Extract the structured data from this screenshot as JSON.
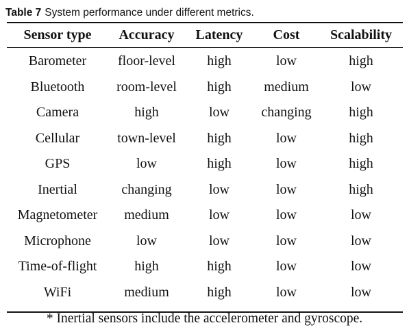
{
  "caption": {
    "label": "Table 7",
    "text": "System performance under different metrics."
  },
  "table": {
    "headers": [
      "Sensor type",
      "Accuracy",
      "Latency",
      "Cost",
      "Scalability"
    ],
    "rows": [
      [
        "Barometer",
        "floor-level",
        "high",
        "low",
        "high"
      ],
      [
        "Bluetooth",
        "room-level",
        "high",
        "medium",
        "low"
      ],
      [
        "Camera",
        "high",
        "low",
        "changing",
        "high"
      ],
      [
        "Cellular",
        "town-level",
        "high",
        "low",
        "high"
      ],
      [
        "GPS",
        "low",
        "high",
        "low",
        "high"
      ],
      [
        "Inertial",
        "changing",
        "low",
        "low",
        "high"
      ],
      [
        "Magnetometer",
        "medium",
        "low",
        "low",
        "low"
      ],
      [
        "Microphone",
        "low",
        "low",
        "low",
        "low"
      ],
      [
        "Time-of-flight",
        "high",
        "high",
        "low",
        "low"
      ],
      [
        "WiFi",
        "medium",
        "high",
        "low",
        "low"
      ]
    ]
  },
  "footnote": "* Inertial sensors include the accelerometer and gyroscope."
}
